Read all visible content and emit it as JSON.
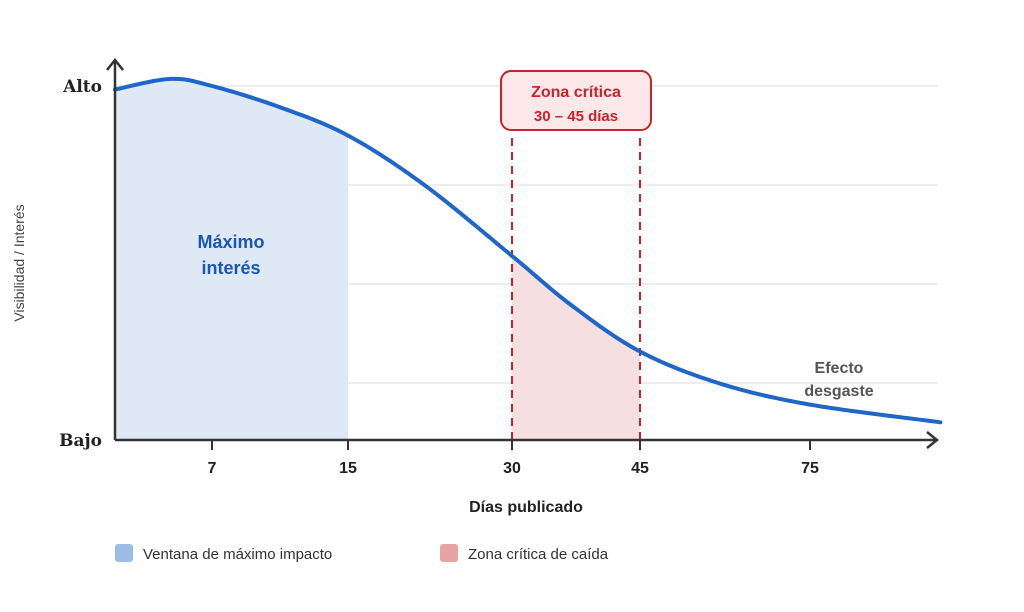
{
  "chart_data": {
    "type": "line",
    "title": "",
    "xlabel": "Días publicado",
    "ylabel": "Visibilidad / Interés",
    "y_tick_labels": {
      "high": "Alto",
      "low": "Bajo"
    },
    "ylim": [
      0,
      100
    ],
    "x_ticks": [
      7,
      15,
      30,
      45,
      75
    ],
    "grid": true,
    "series": [
      {
        "name": "Visibilidad",
        "color": "#1f66c8",
        "x": [
          0,
          4,
          7,
          11,
          15,
          22,
          30,
          37,
          45,
          59,
          75,
          98
        ],
        "y": [
          99,
          102,
          100,
          94,
          86,
          72,
          52,
          38,
          25,
          16,
          10,
          5
        ]
      }
    ],
    "regions": [
      {
        "name": "Ventana de máximo impacto",
        "from": 0,
        "to": 15,
        "color": "#dfe8f5",
        "legend_color": "#9dbde6",
        "label": [
          "Máximo",
          "interés"
        ]
      },
      {
        "name": "Zona crítica de caída",
        "from": 30,
        "to": 45,
        "color": "#f6dfe0",
        "legend_color": "#e8a3a5"
      }
    ],
    "annotations": {
      "critical_box": {
        "title": "Zona crítica",
        "subtitle": "30 – 45 días",
        "color": "#c8232c"
      },
      "wear": [
        "Efecto",
        "desgaste"
      ]
    },
    "legend_placement": "bottom-left"
  }
}
